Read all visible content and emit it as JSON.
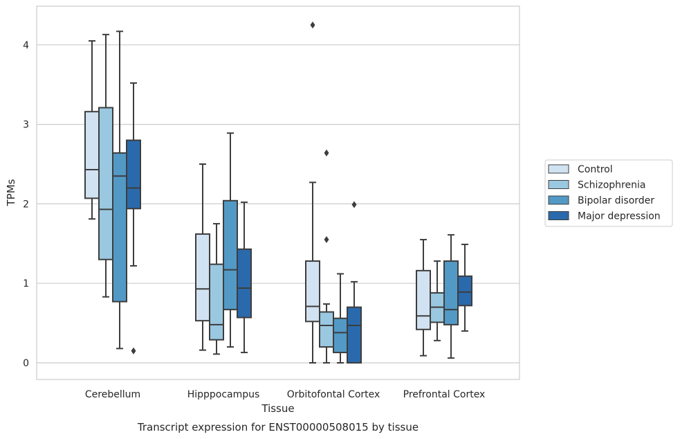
{
  "chart_data": {
    "type": "box",
    "title": "",
    "caption": "Transcript expression for ENST00000508015 by tissue",
    "xlabel": "Tissue",
    "ylabel": "TPMs",
    "ylim": [
      -0.2,
      4.47
    ],
    "yticks": [
      "0",
      "1",
      "2",
      "3",
      "4"
    ],
    "grid": "horizontal",
    "legend_position": "right",
    "categories": [
      "Cerebellum",
      "Hipppocampus",
      "Orbitofontal Cortex",
      "Prefrontal Cortex"
    ],
    "series": [
      {
        "name": "Control",
        "color": "#d1e2f2",
        "boxes": [
          {
            "whislo": 1.81,
            "q1": 2.07,
            "med": 2.43,
            "q3": 3.16,
            "whishi": 4.05,
            "fliers": []
          },
          {
            "whislo": 0.16,
            "q1": 0.53,
            "med": 0.93,
            "q3": 1.62,
            "whishi": 2.5,
            "fliers": []
          },
          {
            "whislo": 0.0,
            "q1": 0.52,
            "med": 0.71,
            "q3": 1.28,
            "whishi": 2.27,
            "fliers": [
              4.25
            ]
          },
          {
            "whislo": 0.09,
            "q1": 0.42,
            "med": 0.59,
            "q3": 1.16,
            "whishi": 1.55,
            "fliers": []
          }
        ]
      },
      {
        "name": "Schizophrenia",
        "color": "#9ac8e0",
        "boxes": [
          {
            "whislo": 0.83,
            "q1": 1.3,
            "med": 1.93,
            "q3": 3.21,
            "whishi": 4.13,
            "fliers": []
          },
          {
            "whislo": 0.11,
            "q1": 0.29,
            "med": 0.48,
            "q3": 1.24,
            "whishi": 1.75,
            "fliers": []
          },
          {
            "whislo": 0.0,
            "q1": 0.2,
            "med": 0.47,
            "q3": 0.64,
            "whishi": 0.74,
            "fliers": [
              2.64,
              1.55
            ]
          },
          {
            "whislo": 0.28,
            "q1": 0.51,
            "med": 0.7,
            "q3": 0.88,
            "whishi": 1.28,
            "fliers": []
          }
        ]
      },
      {
        "name": "Bipolar disorder",
        "color": "#5399c5",
        "boxes": [
          {
            "whislo": 0.18,
            "q1": 0.77,
            "med": 2.35,
            "q3": 2.64,
            "whishi": 4.17,
            "fliers": []
          },
          {
            "whislo": 0.2,
            "q1": 0.67,
            "med": 1.17,
            "q3": 2.04,
            "whishi": 2.89,
            "fliers": []
          },
          {
            "whislo": 0.0,
            "q1": 0.13,
            "med": 0.38,
            "q3": 0.56,
            "whishi": 1.12,
            "fliers": []
          },
          {
            "whislo": 0.06,
            "q1": 0.48,
            "med": 0.67,
            "q3": 1.28,
            "whishi": 1.61,
            "fliers": []
          }
        ]
      },
      {
        "name": "Major depression",
        "color": "#2a6aac",
        "boxes": [
          {
            "whislo": 1.22,
            "q1": 1.94,
            "med": 2.2,
            "q3": 2.8,
            "whishi": 3.52,
            "fliers": [
              0.15
            ]
          },
          {
            "whislo": 0.13,
            "q1": 0.57,
            "med": 0.94,
            "q3": 1.43,
            "whishi": 2.02,
            "fliers": []
          },
          {
            "whislo": 0.0,
            "q1": 0.0,
            "med": 0.47,
            "q3": 0.7,
            "whishi": 1.02,
            "fliers": [
              1.99
            ]
          },
          {
            "whislo": 0.4,
            "q1": 0.72,
            "med": 0.89,
            "q3": 1.09,
            "whishi": 1.49,
            "fliers": []
          }
        ]
      }
    ]
  }
}
